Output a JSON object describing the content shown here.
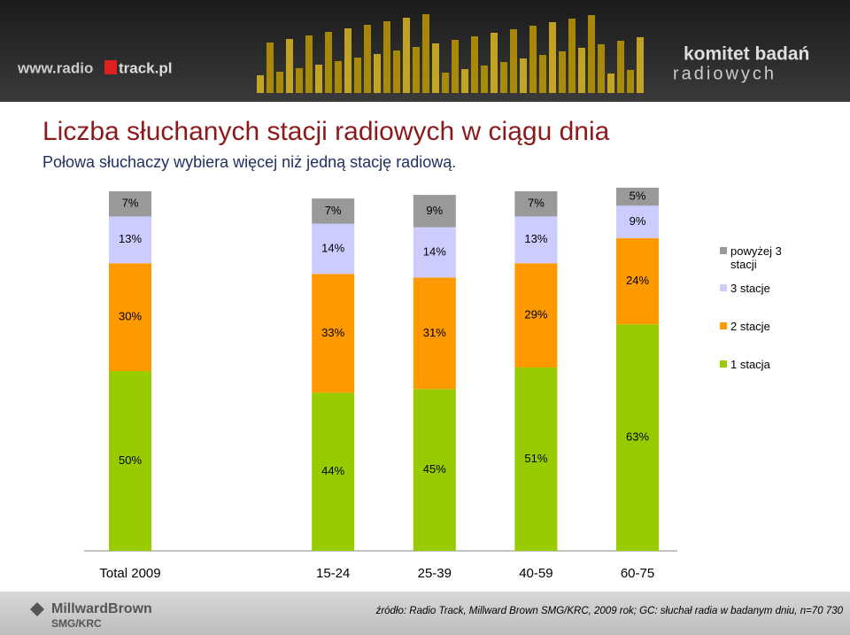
{
  "header": {
    "site_left": "www.radio",
    "site_right": "track.pl",
    "brand_top": "komitet badań",
    "brand_bottom": "radiowych"
  },
  "chart_data": {
    "type": "bar",
    "stacked": true,
    "title": "Liczba słuchanych stacji radiowych w ciągu dnia",
    "subtitle": "Połowa słuchaczy wybiera więcej niż jedną stację radiową.",
    "categories": [
      "Total 2009",
      null,
      "15-24",
      "25-39",
      "40-59",
      "60-75"
    ],
    "ylim": [
      0,
      100
    ],
    "legend": "right",
    "series": [
      {
        "name": "1 stacja",
        "color": "#99cc00",
        "values": [
          50,
          null,
          44,
          45,
          51,
          63
        ],
        "value_labels": [
          "50%",
          null,
          "44%",
          "45%",
          "51%",
          "63%"
        ]
      },
      {
        "name": "2 stacje",
        "color": "#ff9900",
        "values": [
          30,
          null,
          33,
          31,
          29,
          24
        ],
        "value_labels": [
          "30%",
          null,
          "33%",
          "31%",
          "29%",
          "24%"
        ]
      },
      {
        "name": "3 stacje",
        "color": "#ccccff",
        "values": [
          13,
          null,
          14,
          14,
          13,
          9
        ],
        "value_labels": [
          "13%",
          null,
          "14%",
          "14%",
          "13%",
          "9%"
        ]
      },
      {
        "name": "powyżej 3 stacji",
        "color": "#999999",
        "values": [
          7,
          null,
          7,
          9,
          7,
          5
        ],
        "value_labels": [
          "7%",
          null,
          "7%",
          "9%",
          "7%",
          "5%"
        ]
      }
    ]
  },
  "footer": {
    "logo_top": "MillwardBrown",
    "logo_bottom": "SMG/KRC",
    "source": "źródło: Radio Track, Millward Brown SMG/KRC, 2009 rok; GC: słuchał radia w badanym dniu, n=70 730"
  }
}
